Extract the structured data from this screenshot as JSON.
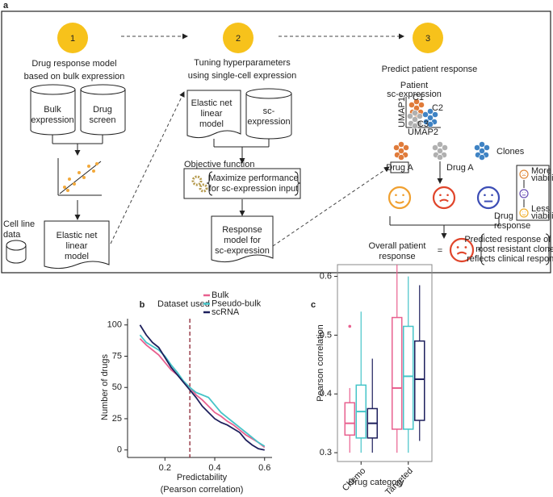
{
  "panel_a": {
    "label": "a",
    "steps": [
      {
        "number": "1",
        "title": [
          "Drug response model",
          "based on bulk expression"
        ]
      },
      {
        "number": "2",
        "title": [
          "Tuning hyperparameters",
          "using single-cell expression"
        ]
      },
      {
        "number": "3",
        "title": [
          "Predict patient response"
        ]
      }
    ],
    "bulk_expression": [
      "Bulk",
      "expression"
    ],
    "drug_screen": [
      "Drug",
      "screen"
    ],
    "cell_line_data": [
      "Cell line",
      "data"
    ],
    "model_1": [
      "Elastic net",
      "linear",
      "model"
    ],
    "model_2": [
      "Elastic net",
      "linear",
      "model"
    ],
    "sc_expression": [
      "sc-",
      "expression"
    ],
    "objective_function": "Objective function",
    "maximize": [
      "Maximize performance",
      "for sc-expression input"
    ],
    "response_model": [
      "Response",
      "model for",
      "sc-expression"
    ],
    "patient_sc": [
      "Patient",
      "sc-expression"
    ],
    "umap_axes": [
      "UMAP1",
      "UMAP2"
    ],
    "clusters": [
      "C1",
      "C2",
      "C3"
    ],
    "clones": "Clones",
    "drug_a_box": "Drug A",
    "drug_a": "Drug A",
    "drug_response": [
      "Drug",
      "response"
    ],
    "more_viability": [
      "More",
      "viability"
    ],
    "less_viability": [
      "Less",
      "viability"
    ],
    "overall": [
      "Overall patient",
      "response"
    ],
    "equals": "=",
    "predicted": [
      "Predicted response of the",
      "most resistant clone",
      "reflects clinical response"
    ]
  },
  "chart_data": [
    {
      "type": "line",
      "panel_label": "b",
      "legend_title": "Dataset used",
      "legend": "top",
      "x_label": [
        "Predictability",
        "(Pearson correlation)"
      ],
      "y_label": "Number of drugs",
      "x": [
        0.1,
        0.125,
        0.15,
        0.175,
        0.2,
        0.225,
        0.25,
        0.275,
        0.3,
        0.325,
        0.35,
        0.375,
        0.4,
        0.425,
        0.45,
        0.475,
        0.5,
        0.525,
        0.55,
        0.575,
        0.6
      ],
      "series": [
        {
          "name": "Bulk",
          "color": "#e8608f",
          "values": [
            89,
            84,
            80,
            76,
            70,
            64,
            60,
            55,
            50,
            44,
            40,
            35,
            30,
            27,
            23,
            20,
            16,
            12,
            9,
            6,
            2
          ]
        },
        {
          "name": "Pseudo-bulk",
          "color": "#45c4c8",
          "values": [
            92,
            86,
            83,
            80,
            75,
            68,
            62,
            55,
            50,
            46,
            44,
            42,
            36,
            30,
            26,
            22,
            18,
            14,
            10,
            6,
            3
          ]
        },
        {
          "name": "scRNA",
          "color": "#1d1f5c",
          "values": [
            100,
            92,
            86,
            82,
            74,
            66,
            60,
            54,
            48,
            42,
            35,
            30,
            25,
            22,
            20,
            17,
            14,
            8,
            4,
            1,
            0
          ]
        }
      ],
      "reference_line": 0.3,
      "reference_color": "#8b2332",
      "xlim": [
        0.05,
        0.63
      ],
      "ylim": [
        -6,
        105
      ],
      "xticks": [
        0.2,
        0.4,
        0.6
      ],
      "yticks": [
        0,
        25,
        50,
        75,
        100
      ]
    },
    {
      "type": "box",
      "panel_label": "c",
      "x_label": "Drug category",
      "y_label": "Pearson correlation",
      "categories": [
        "Chemo",
        "Targeted"
      ],
      "series": [
        {
          "color": "#e8608f",
          "boxes": [
            [
              0.3,
              0.33,
              0.35,
              0.385,
              0.41
            ],
            [
              0.3,
              0.34,
              0.41,
              0.53,
              0.62
            ]
          ],
          "outliers": [
            [
              0.515
            ],
            []
          ]
        },
        {
          "color": "#45c4c8",
          "boxes": [
            [
              0.3,
              0.325,
              0.37,
              0.415,
              0.54
            ],
            [
              0.3,
              0.34,
              0.43,
              0.515,
              0.6
            ]
          ],
          "outliers": [
            [],
            []
          ]
        },
        {
          "color": "#1d1f5c",
          "boxes": [
            [
              0.3,
              0.325,
              0.35,
              0.375,
              0.46
            ],
            [
              0.32,
              0.355,
              0.425,
              0.49,
              0.585
            ]
          ],
          "outliers": [
            [],
            []
          ]
        }
      ],
      "ylim": [
        0.285,
        0.62
      ],
      "yticks": [
        0.3,
        0.4,
        0.5,
        0.6
      ]
    }
  ]
}
